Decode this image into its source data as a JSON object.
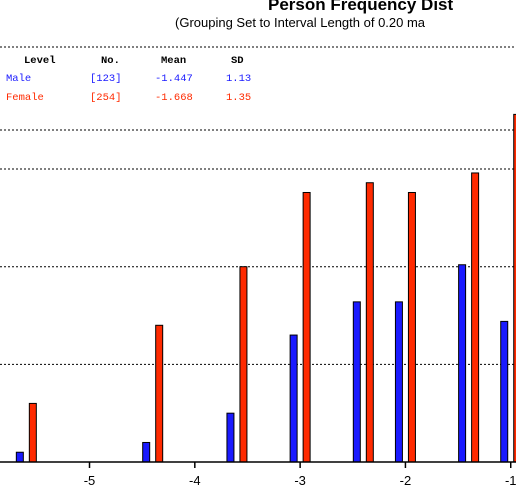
{
  "chart_data": {
    "type": "bar",
    "title": "Person Frequency Dist",
    "subtitle": "(Grouping Set to Interval Length of  0.20  ma",
    "xlabel": "",
    "ylabel": "",
    "grid": true,
    "xlim": [
      -5.85,
      -0.95
    ],
    "ylim": [
      0,
      17
    ],
    "x_ticks": [
      -5,
      -4,
      -3,
      -2,
      -1
    ],
    "legend_table": {
      "headers": [
        "Level",
        "No.",
        "Mean",
        "SD"
      ],
      "rows": [
        {
          "level": "Male",
          "no": "[123]",
          "mean": "-1.447",
          "sd": "1.13"
        },
        {
          "level": "Female",
          "no": "[254]",
          "mean": "-1.668",
          "sd": "1.35"
        }
      ]
    },
    "x": [
      -5.6,
      -4.4,
      -3.6,
      -3.0,
      -2.4,
      -2.0,
      -1.4,
      -1.0
    ],
    "series": [
      {
        "name": "Male",
        "color": "#1a1aff",
        "values": [
          0.5,
          1,
          2.5,
          6.5,
          8.2,
          8.2,
          10.1,
          7.2
        ]
      },
      {
        "name": "Female",
        "color": "#ff2a00",
        "values": [
          3,
          7,
          10,
          13.8,
          14.3,
          13.8,
          14.8,
          17.8
        ]
      }
    ]
  }
}
